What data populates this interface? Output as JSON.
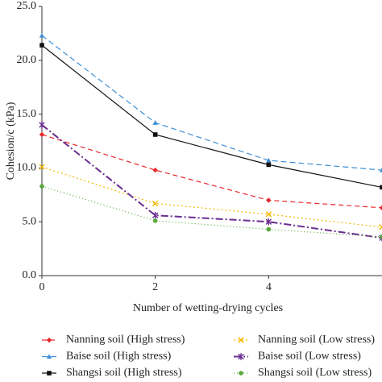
{
  "chart_data": {
    "type": "line",
    "x_label": "Number of wetting-drying cycles",
    "y_label": "Cohesion/c (kPa)",
    "x": [
      0,
      2,
      4,
      6
    ],
    "xlim": [
      0,
      6
    ],
    "xticks": [
      0,
      2,
      4
    ],
    "ylim": [
      0,
      25
    ],
    "yticks": [
      {
        "value": 0,
        "label": "0.0"
      },
      {
        "value": 5,
        "label": "5.0"
      },
      {
        "value": 10,
        "label": "10.0"
      },
      {
        "value": 15,
        "label": "15.0"
      },
      {
        "value": 20,
        "label": "20.0"
      },
      {
        "value": 25,
        "label": "25.0"
      }
    ],
    "series": [
      {
        "name": "Nanning soil (High stress)",
        "color": "#e8262b",
        "dash": "6,4",
        "marker": "diamond",
        "values": [
          13.1,
          9.8,
          7.0,
          6.3
        ]
      },
      {
        "name": "Nanning soil (Low stress)",
        "color": "#f5b800",
        "dash": "2,3",
        "marker": "x",
        "values": [
          10.1,
          6.7,
          5.7,
          4.5
        ]
      },
      {
        "name": "Baise soil (High stress)",
        "color": "#3d8fd6",
        "dash": "7,4",
        "marker": "triangle",
        "values": [
          22.3,
          14.2,
          10.7,
          9.8
        ]
      },
      {
        "name": "Baise soil (Low stress)",
        "color": "#6a2d91",
        "dash": "9,3,2,3",
        "marker": "star",
        "values": [
          14.0,
          5.6,
          5.0,
          3.5
        ]
      },
      {
        "name": "Shangsi soil (High stress)",
        "color": "#111111",
        "dash": "",
        "marker": "square",
        "values": [
          21.4,
          13.1,
          10.3,
          8.2
        ]
      },
      {
        "name": "Shangsi soil (Low stress)",
        "color": "#5aa63c",
        "dash": "1,3",
        "marker": "circle",
        "values": [
          8.3,
          5.1,
          4.3,
          3.6
        ]
      }
    ]
  }
}
